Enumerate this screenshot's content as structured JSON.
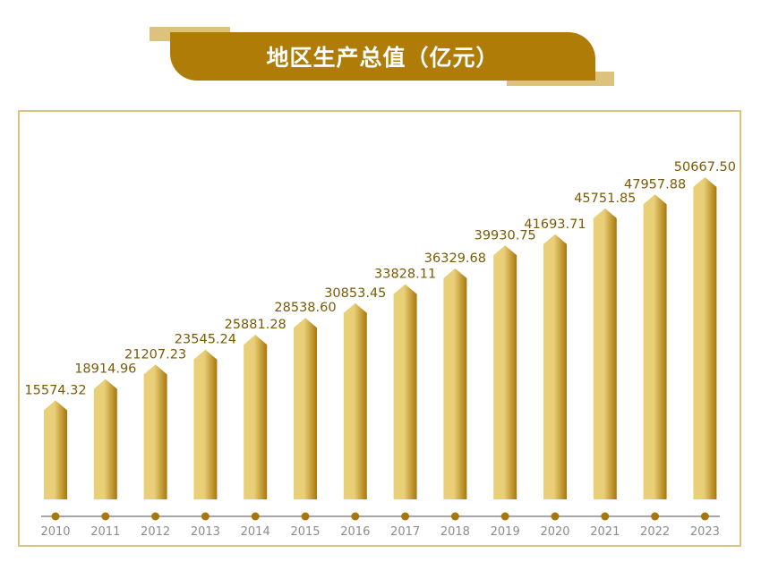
{
  "title": "地区生产总值（亿元）",
  "colors": {
    "bar_light": "#e8cf78",
    "bar_dark": "#a8770a",
    "banner": "#b07c08",
    "frame": "#dcc27c",
    "label": "#7a5a06",
    "axis": "#a6a6a6",
    "dot": "#a8770a",
    "tick_text": "#8c8c8c"
  },
  "chart_data": {
    "type": "bar",
    "title": "地区生产总值（亿元）",
    "categories": [
      "2010",
      "2011",
      "2012",
      "2013",
      "2014",
      "2015",
      "2016",
      "2017",
      "2018",
      "2019",
      "2020",
      "2021",
      "2022",
      "2023"
    ],
    "values": [
      15574.32,
      18914.96,
      21207.23,
      23545.24,
      25881.28,
      28538.6,
      30853.45,
      33828.11,
      36329.68,
      39930.75,
      41693.71,
      45751.85,
      47957.88,
      50667.5
    ],
    "value_labels": [
      "15574.32",
      "18914.96",
      "21207.23",
      "23545.24",
      "25881.28",
      "28538.60",
      "30853.45",
      "33828.11",
      "36329.68",
      "39930.75",
      "41693.71",
      "45751.85",
      "47957.88",
      "50667.50"
    ],
    "xlabel": "",
    "ylabel": "",
    "ylim": [
      0,
      55000
    ],
    "grid": false,
    "legend": "none"
  }
}
